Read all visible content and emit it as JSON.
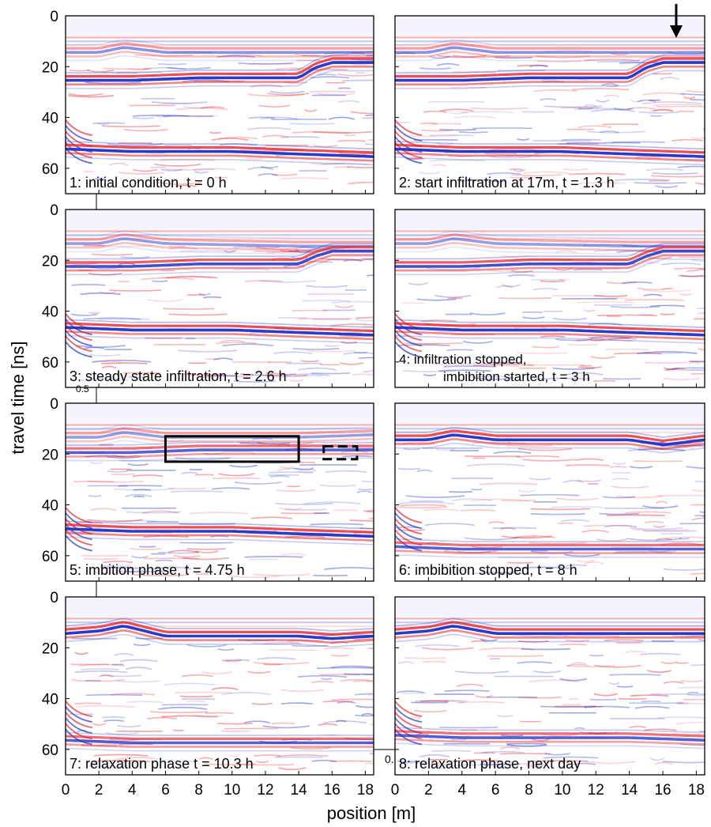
{
  "chart_data": {
    "type": "heatmap",
    "description_kind": "ground-penetrating radar radargrams, 8 panels in a 4x2 grid",
    "xlabel": "position [m]",
    "ylabel": "travel time [ns]",
    "xlim": [
      0,
      18.5
    ],
    "ylim": [
      0,
      70
    ],
    "y_inverted": true,
    "x_ticks": [
      "0",
      "2",
      "4",
      "6",
      "8",
      "10",
      "12",
      "14",
      "16",
      "18"
    ],
    "y_ticks": [
      "0",
      "20",
      "40",
      "60"
    ],
    "colormap": {
      "positive": "#e8202a",
      "negative": "#1f2fc8",
      "zero": "#ffffff"
    },
    "stray_labels": {
      "left": "0.5",
      "bottom": "0."
    },
    "panels": [
      {
        "label": "1: initial condition, t = 0 h",
        "reflectors": [
          {
            "points": [
              [
                0,
                14
              ],
              [
                2,
                14
              ],
              [
                3.5,
                12
              ],
              [
                6,
                14
              ],
              [
                14,
                14
              ],
              [
                18.5,
                14
              ]
            ],
            "amp": 0.55
          },
          {
            "points": [
              [
                0,
                25
              ],
              [
                4,
                25
              ],
              [
                8,
                24
              ],
              [
                12,
                24
              ],
              [
                14,
                24
              ],
              [
                15,
                20
              ],
              [
                16,
                18
              ],
              [
                18.5,
                18
              ]
            ],
            "amp": 1.0
          },
          {
            "points": [
              [
                0,
                52
              ],
              [
                4,
                53
              ],
              [
                10,
                53
              ],
              [
                14,
                54
              ],
              [
                18.5,
                55
              ]
            ],
            "amp": 1.0
          }
        ]
      },
      {
        "label": "2: start infiltration at 17m, t = 1.3 h",
        "arrow_x": 16.8,
        "reflectors": [
          {
            "points": [
              [
                0,
                14
              ],
              [
                2,
                14
              ],
              [
                3.5,
                12
              ],
              [
                6,
                14
              ],
              [
                14,
                14
              ],
              [
                18.5,
                14
              ]
            ],
            "amp": 0.55
          },
          {
            "points": [
              [
                0,
                25
              ],
              [
                4,
                25
              ],
              [
                8,
                24
              ],
              [
                12,
                24
              ],
              [
                14,
                24
              ],
              [
                15,
                20
              ],
              [
                16,
                18
              ],
              [
                18.5,
                18
              ]
            ],
            "amp": 1.0
          },
          {
            "points": [
              [
                0,
                52
              ],
              [
                4,
                53
              ],
              [
                10,
                53
              ],
              [
                14,
                54
              ],
              [
                18.5,
                55
              ]
            ],
            "amp": 1.0
          }
        ]
      },
      {
        "label": "3: steady state infiltration, t = 2.6 h",
        "reflectors": [
          {
            "points": [
              [
                0,
                13
              ],
              [
                2,
                13
              ],
              [
                3.5,
                11
              ],
              [
                6,
                13
              ],
              [
                14,
                14
              ],
              [
                18.5,
                14
              ]
            ],
            "amp": 0.5
          },
          {
            "points": [
              [
                0,
                22
              ],
              [
                4,
                22
              ],
              [
                8,
                21
              ],
              [
                12,
                21
              ],
              [
                14,
                21
              ],
              [
                15,
                18
              ],
              [
                16,
                16
              ],
              [
                18.5,
                16
              ]
            ],
            "amp": 0.9
          },
          {
            "points": [
              [
                0,
                46
              ],
              [
                4,
                47
              ],
              [
                10,
                47
              ],
              [
                14,
                48
              ],
              [
                18.5,
                49
              ]
            ],
            "amp": 1.0
          }
        ]
      },
      {
        "label": "4: infiltration stopped,",
        "label2": "imbibition started, t = 3 h",
        "reflectors": [
          {
            "points": [
              [
                0,
                13
              ],
              [
                2,
                13
              ],
              [
                3.5,
                11
              ],
              [
                6,
                13
              ],
              [
                14,
                14
              ],
              [
                18.5,
                14
              ]
            ],
            "amp": 0.5
          },
          {
            "points": [
              [
                0,
                22
              ],
              [
                4,
                22
              ],
              [
                8,
                21
              ],
              [
                12,
                21
              ],
              [
                14,
                21
              ],
              [
                15,
                18
              ],
              [
                16,
                16
              ],
              [
                18.5,
                16
              ]
            ],
            "amp": 0.9
          },
          {
            "points": [
              [
                0,
                46
              ],
              [
                4,
                47
              ],
              [
                10,
                47
              ],
              [
                14,
                48
              ],
              [
                18.5,
                49
              ]
            ],
            "amp": 1.0
          }
        ]
      },
      {
        "label": "5: imbition phase, t = 4.75 h",
        "box_solid": [
          6,
          13,
          14,
          23
        ],
        "box_dashed": [
          15.5,
          17,
          17.5,
          22
        ],
        "reflectors": [
          {
            "points": [
              [
                0,
                13
              ],
              [
                2,
                13
              ],
              [
                3.5,
                11
              ],
              [
                6,
                13
              ],
              [
                14,
                13
              ],
              [
                18.5,
                12
              ]
            ],
            "amp": 0.5
          },
          {
            "points": [
              [
                0,
                19
              ],
              [
                4,
                19
              ],
              [
                8,
                18
              ],
              [
                12,
                18
              ],
              [
                16,
                18
              ],
              [
                18.5,
                18
              ]
            ],
            "amp": 0.8
          },
          {
            "points": [
              [
                0,
                49
              ],
              [
                4,
                50
              ],
              [
                10,
                50
              ],
              [
                14,
                51
              ],
              [
                18.5,
                52
              ]
            ],
            "amp": 1.0
          }
        ]
      },
      {
        "label": "6: imbibition stopped, t = 8 h",
        "reflectors": [
          {
            "points": [
              [
                0,
                14
              ],
              [
                2,
                14
              ],
              [
                3.5,
                12
              ],
              [
                6,
                14
              ],
              [
                10,
                14
              ],
              [
                14,
                14
              ],
              [
                16,
                16
              ],
              [
                18.5,
                14
              ]
            ],
            "amp": 1.0
          },
          {
            "points": [
              [
                0,
                56
              ],
              [
                4,
                57
              ],
              [
                10,
                57
              ],
              [
                14,
                57
              ],
              [
                18.5,
                57
              ]
            ],
            "amp": 0.8
          }
        ]
      },
      {
        "label": "7: relaxation phase t = 10.3 h",
        "reflectors": [
          {
            "points": [
              [
                0,
                14
              ],
              [
                2,
                13
              ],
              [
                3.5,
                11
              ],
              [
                6,
                15
              ],
              [
                10,
                15
              ],
              [
                14,
                15
              ],
              [
                16,
                16
              ],
              [
                18.5,
                15
              ]
            ],
            "amp": 1.0
          },
          {
            "points": [
              [
                0,
                56
              ],
              [
                4,
                57
              ],
              [
                10,
                57
              ],
              [
                14,
                57
              ],
              [
                18.5,
                57
              ]
            ],
            "amp": 0.8
          }
        ]
      },
      {
        "label": "8: relaxation phase, next day",
        "reflectors": [
          {
            "points": [
              [
                0,
                14
              ],
              [
                2,
                13
              ],
              [
                3.5,
                11
              ],
              [
                6,
                14
              ],
              [
                10,
                14
              ],
              [
                14,
                14
              ],
              [
                16,
                14
              ],
              [
                18.5,
                14
              ]
            ],
            "amp": 1.0
          },
          {
            "points": [
              [
                0,
                54
              ],
              [
                4,
                55
              ],
              [
                10,
                55
              ],
              [
                14,
                55
              ],
              [
                18.5,
                56
              ]
            ],
            "amp": 0.8
          }
        ]
      }
    ]
  }
}
